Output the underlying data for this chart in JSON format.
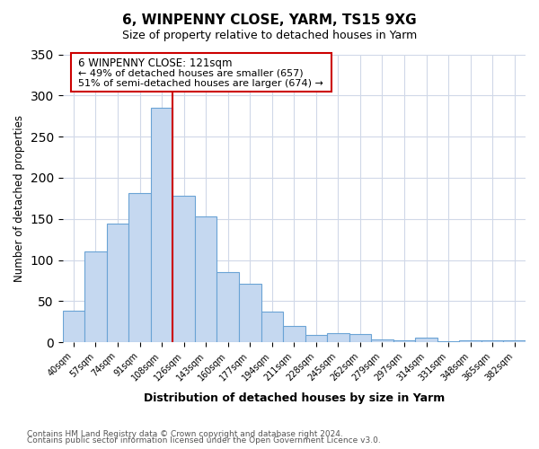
{
  "title": "6, WINPENNY CLOSE, YARM, TS15 9XG",
  "subtitle": "Size of property relative to detached houses in Yarm",
  "xlabel": "Distribution of detached houses by size in Yarm",
  "ylabel": "Number of detached properties",
  "bar_labels": [
    "40sqm",
    "57sqm",
    "74sqm",
    "91sqm",
    "108sqm",
    "126sqm",
    "143sqm",
    "160sqm",
    "177sqm",
    "194sqm",
    "211sqm",
    "228sqm",
    "245sqm",
    "262sqm",
    "279sqm",
    "297sqm",
    "314sqm",
    "331sqm",
    "348sqm",
    "365sqm",
    "382sqm"
  ],
  "bar_values": [
    38,
    110,
    144,
    181,
    285,
    178,
    153,
    85,
    71,
    37,
    20,
    9,
    11,
    10,
    4,
    3,
    6,
    1,
    2,
    3,
    2
  ],
  "bar_color": "#c5d8f0",
  "bar_edge_color": "#6aa3d5",
  "vline_x": 5,
  "vline_color": "#cc0000",
  "annotation_title": "6 WINPENNY CLOSE: 121sqm",
  "annotation_line1": "← 49% of detached houses are smaller (657)",
  "annotation_line2": "51% of semi-detached houses are larger (674) →",
  "annotation_box_color": "#cc0000",
  "ylim": [
    0,
    350
  ],
  "yticks": [
    0,
    50,
    100,
    150,
    200,
    250,
    300,
    350
  ],
  "footer_line1": "Contains HM Land Registry data © Crown copyright and database right 2024.",
  "footer_line2": "Contains public sector information licensed under the Open Government Licence v3.0.",
  "background_color": "#ffffff",
  "grid_color": "#d0d8e8"
}
